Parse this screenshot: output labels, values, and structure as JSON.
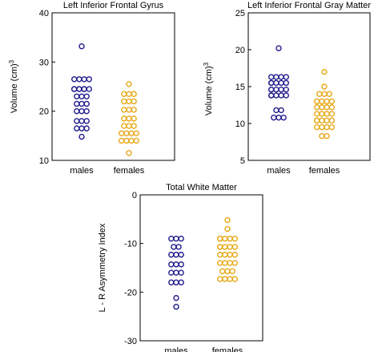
{
  "chart_data": [
    {
      "type": "scatter",
      "title": "Left Inferior Frontal Gyrus",
      "ylabel": "Volume (cm)",
      "ylabel_superscript": "3",
      "ylim": [
        10,
        40
      ],
      "yticks": [
        "10",
        "20",
        "30",
        "40"
      ],
      "categories": [
        "males",
        "females"
      ],
      "colors": [
        "#221c8c",
        "#e6a817"
      ],
      "series": [
        {
          "name": "males",
          "values": [
            33.2,
            26.5,
            26.5,
            26.5,
            26.5,
            24.5,
            24.5,
            24.5,
            24.5,
            24.5,
            24.5,
            24.5,
            23,
            23,
            23,
            21.5,
            21.5,
            21.5,
            20,
            20,
            20,
            18,
            18,
            18,
            16.5,
            16.5,
            16.5,
            14.8
          ]
        },
        {
          "name": "females",
          "values": [
            25.5,
            23.5,
            23.5,
            23.5,
            22,
            22,
            22,
            20.3,
            20.3,
            20.3,
            18.5,
            18.5,
            18.5,
            17,
            17,
            17,
            15.5,
            15.5,
            15.5,
            15.5,
            14,
            14,
            14,
            14,
            11.5
          ]
        }
      ]
    },
    {
      "type": "scatter",
      "title": "Left Inferior Frontal Gray Matter",
      "ylabel": "Volume (cm)",
      "ylabel_superscript": "3",
      "ylim": [
        5,
        25
      ],
      "yticks": [
        "5",
        "10",
        "15",
        "20",
        "25"
      ],
      "categories": [
        "males",
        "females"
      ],
      "colors": [
        "#221c8c",
        "#e6a817"
      ],
      "series": [
        {
          "name": "males",
          "values": [
            20.2,
            16.3,
            16.3,
            16.3,
            16.3,
            15.5,
            15.5,
            15.5,
            15.5,
            15.5,
            14.6,
            14.6,
            14.6,
            14.6,
            14.6,
            13.8,
            13.8,
            13.8,
            13.8,
            13.8,
            11.8,
            11.8,
            10.8,
            10.8,
            10.8
          ]
        },
        {
          "name": "females",
          "values": [
            17,
            15,
            14,
            14,
            14,
            13,
            13,
            13,
            13,
            12.2,
            12.2,
            12.2,
            12.2,
            11.3,
            11.3,
            11.3,
            11.3,
            10.4,
            10.4,
            10.4,
            10.4,
            10.4,
            9.5,
            9.5,
            9.5,
            9.5,
            8.3,
            8.3
          ]
        }
      ]
    },
    {
      "type": "scatter",
      "title": "Total White Matter",
      "ylabel": "L - R Asymmetry Index",
      "ylim": [
        -30,
        0
      ],
      "yticks": [
        "0",
        "-10",
        "-20",
        "-30"
      ],
      "categories": [
        "males",
        "females"
      ],
      "colors": [
        "#221c8c",
        "#e6a817"
      ],
      "series": [
        {
          "name": "males",
          "values": [
            -9,
            -9,
            -9,
            -10.7,
            -10.7,
            -12.3,
            -12.3,
            -12.3,
            -14.3,
            -14.3,
            -14.3,
            -16,
            -16,
            -16,
            -18,
            -18,
            -18,
            -21.2,
            -23
          ]
        },
        {
          "name": "females",
          "values": [
            -5.2,
            -7,
            -9,
            -9,
            -9,
            -9,
            -9,
            -10.7,
            -10.7,
            -10.7,
            -10.7,
            -10.7,
            -12.3,
            -12.3,
            -12.3,
            -12.3,
            -14,
            -14,
            -14,
            -14,
            -15.7,
            -15.7,
            -15.7,
            -17.3,
            -17.3,
            -17.3,
            -17.3
          ]
        }
      ]
    }
  ]
}
